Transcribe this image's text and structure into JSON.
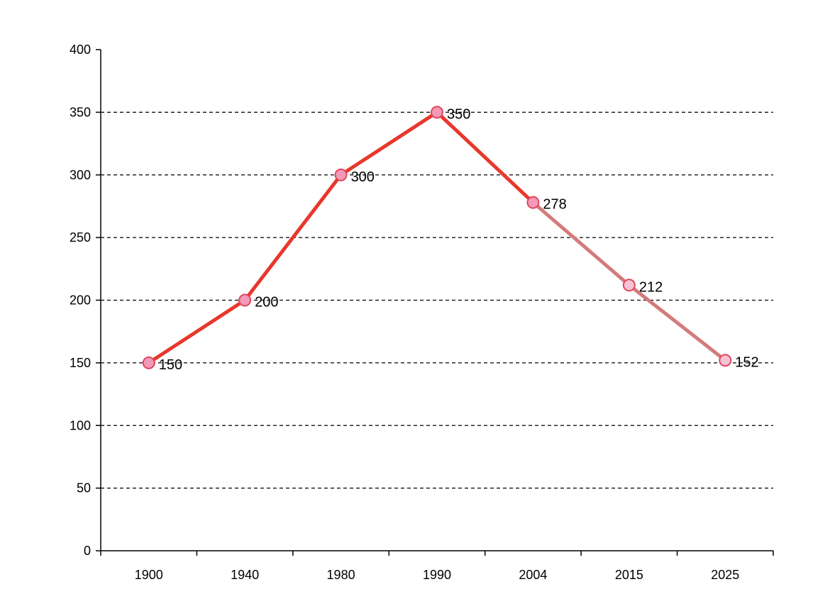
{
  "chart_data": {
    "type": "line",
    "title": "",
    "xlabel": "",
    "ylabel": "",
    "categories": [
      "1900",
      "1940",
      "1980",
      "1990",
      "2004",
      "2015",
      "2025"
    ],
    "values": [
      150,
      200,
      300,
      350,
      278,
      212,
      152
    ],
    "data_labels": [
      "150",
      "200",
      "300",
      "350",
      "278",
      "212",
      "152"
    ],
    "ylim": [
      0,
      400
    ],
    "y_ticks": [
      0,
      50,
      100,
      150,
      200,
      250,
      300,
      350,
      400
    ],
    "y_tick_labels": [
      "0",
      "50",
      "100",
      "150",
      "200",
      "250",
      "300",
      "350",
      "400"
    ],
    "grid": "horizontal-dashed",
    "legend": "none",
    "observed_through_index": 4,
    "colors": {
      "observed_line": "#e8372c",
      "projected_line": "#d37b7b",
      "observed_marker_fill": "#f29ab8",
      "projected_marker_fill": "#f6c2d6",
      "marker_stroke": "#e0465e",
      "grid": "#000000",
      "axis": "#000000"
    }
  }
}
